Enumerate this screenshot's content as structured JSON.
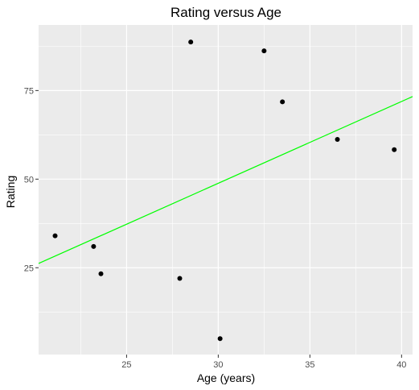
{
  "chart_data": {
    "type": "scatter",
    "title": "Rating versus Age",
    "xlabel": "Age (years)",
    "ylabel": "Rating",
    "xlim": [
      20.2,
      40.6
    ],
    "ylim": [
      0.5,
      93.5
    ],
    "x_ticks": [
      25,
      30,
      35,
      40
    ],
    "y_ticks": [
      25,
      50,
      75
    ],
    "x_tick_labels": [
      "25",
      "30",
      "35",
      "40"
    ],
    "y_tick_labels": [
      "25",
      "50",
      "75"
    ],
    "grid": true,
    "points": [
      {
        "x": 21.1,
        "y": 34
      },
      {
        "x": 23.2,
        "y": 31
      },
      {
        "x": 23.6,
        "y": 23.3
      },
      {
        "x": 27.9,
        "y": 22
      },
      {
        "x": 28.5,
        "y": 88.7
      },
      {
        "x": 30.1,
        "y": 5
      },
      {
        "x": 32.5,
        "y": 86.2
      },
      {
        "x": 33.5,
        "y": 71.8
      },
      {
        "x": 36.5,
        "y": 61.2
      },
      {
        "x": 39.6,
        "y": 58.3
      }
    ],
    "fit_line": {
      "x": [
        20.2,
        40.6
      ],
      "y": [
        26.2,
        73.3
      ],
      "color": "#00ff00"
    },
    "colors": {
      "panel": "#ebebeb",
      "grid": "#ffffff",
      "point": "#000000"
    }
  }
}
